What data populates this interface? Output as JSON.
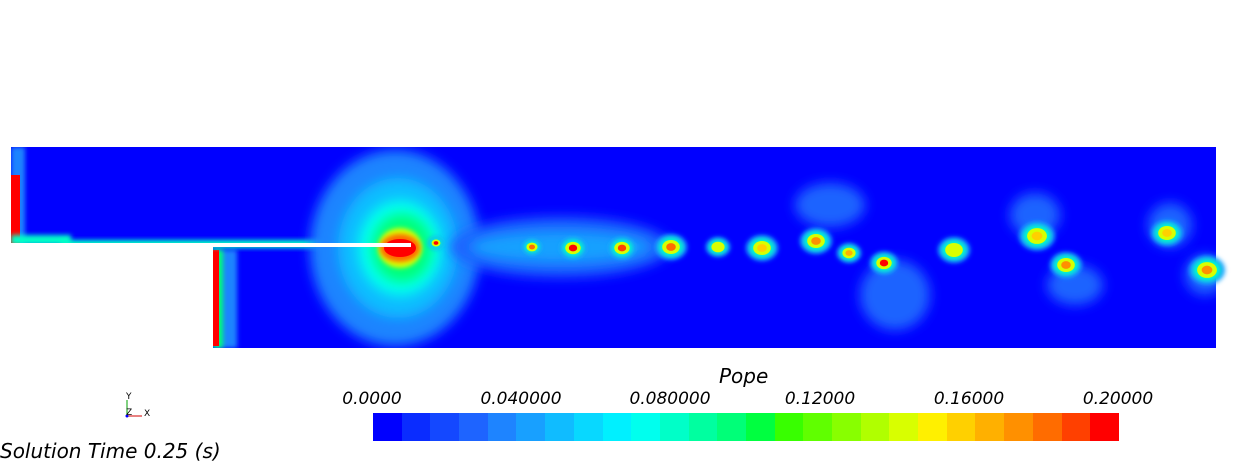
{
  "legend": {
    "title": "Pope",
    "ticks": [
      "0.0000",
      "0.040000",
      "0.080000",
      "0.12000",
      "0.16000",
      "0.20000"
    ],
    "range": [
      0.0,
      0.2
    ],
    "colors": [
      "#0000ff",
      "#0a2cff",
      "#1448ff",
      "#1e64ff",
      "#1e84ff",
      "#18a0ff",
      "#10bcff",
      "#08d8ff",
      "#00f0ff",
      "#00ffee",
      "#00ffc8",
      "#00ffa0",
      "#00ff78",
      "#00ff40",
      "#38ff00",
      "#60ff00",
      "#88ff00",
      "#b0ff00",
      "#d8ff00",
      "#fff000",
      "#ffd000",
      "#ffb000",
      "#ff9000",
      "#ff6c00",
      "#ff4000",
      "#ff0000"
    ]
  },
  "axis_triad": {
    "y_label": "Y",
    "z_label": "Z",
    "x_label": "X"
  },
  "solution_time": "Solution Time 0.25 (s)"
}
